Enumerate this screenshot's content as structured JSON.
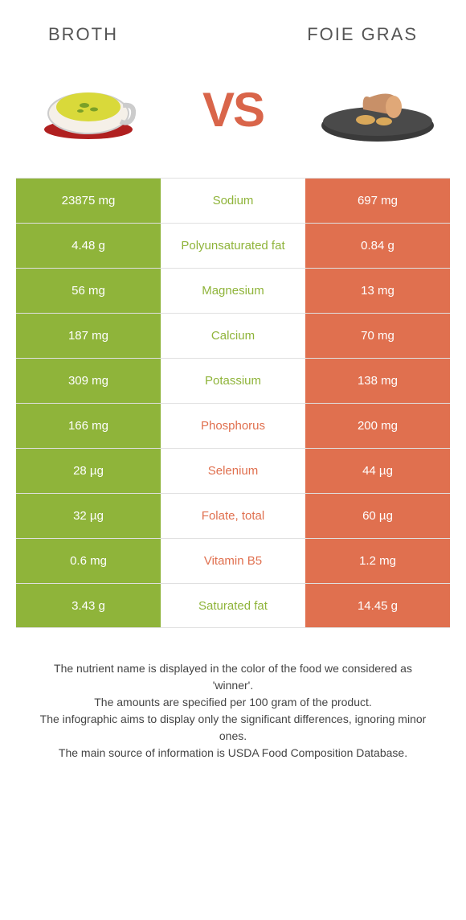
{
  "header": {
    "left_title": "BROTH",
    "right_title": "FOIE GRAS",
    "vs": "VS"
  },
  "colors": {
    "left_bg": "#8fb43a",
    "right_bg": "#e0704f",
    "left_text": "#8fb43a",
    "right_text": "#e0704f",
    "cell_text": "#ffffff",
    "border": "#e0e0e0"
  },
  "rows": [
    {
      "left": "23875 mg",
      "label": "Sodium",
      "right": "697 mg",
      "winner": "left"
    },
    {
      "left": "4.48 g",
      "label": "Polyunsaturated fat",
      "right": "0.84 g",
      "winner": "left"
    },
    {
      "left": "56 mg",
      "label": "Magnesium",
      "right": "13 mg",
      "winner": "left"
    },
    {
      "left": "187 mg",
      "label": "Calcium",
      "right": "70 mg",
      "winner": "left"
    },
    {
      "left": "309 mg",
      "label": "Potassium",
      "right": "138 mg",
      "winner": "left"
    },
    {
      "left": "166 mg",
      "label": "Phosphorus",
      "right": "200 mg",
      "winner": "right"
    },
    {
      "left": "28 µg",
      "label": "Selenium",
      "right": "44 µg",
      "winner": "right"
    },
    {
      "left": "32 µg",
      "label": "Folate, total",
      "right": "60 µg",
      "winner": "right"
    },
    {
      "left": "0.6 mg",
      "label": "Vitamin B5",
      "right": "1.2 mg",
      "winner": "right"
    },
    {
      "left": "3.43 g",
      "label": "Saturated fat",
      "right": "14.45 g",
      "winner": "left"
    }
  ],
  "footer": {
    "line1": "The nutrient name is displayed in the color of the food we considered as 'winner'.",
    "line2": "The amounts are specified per 100 gram of the product.",
    "line3": "The infographic aims to display only the significant differences, ignoring minor ones.",
    "line4": "The main source of information is USDA Food Composition Database."
  }
}
